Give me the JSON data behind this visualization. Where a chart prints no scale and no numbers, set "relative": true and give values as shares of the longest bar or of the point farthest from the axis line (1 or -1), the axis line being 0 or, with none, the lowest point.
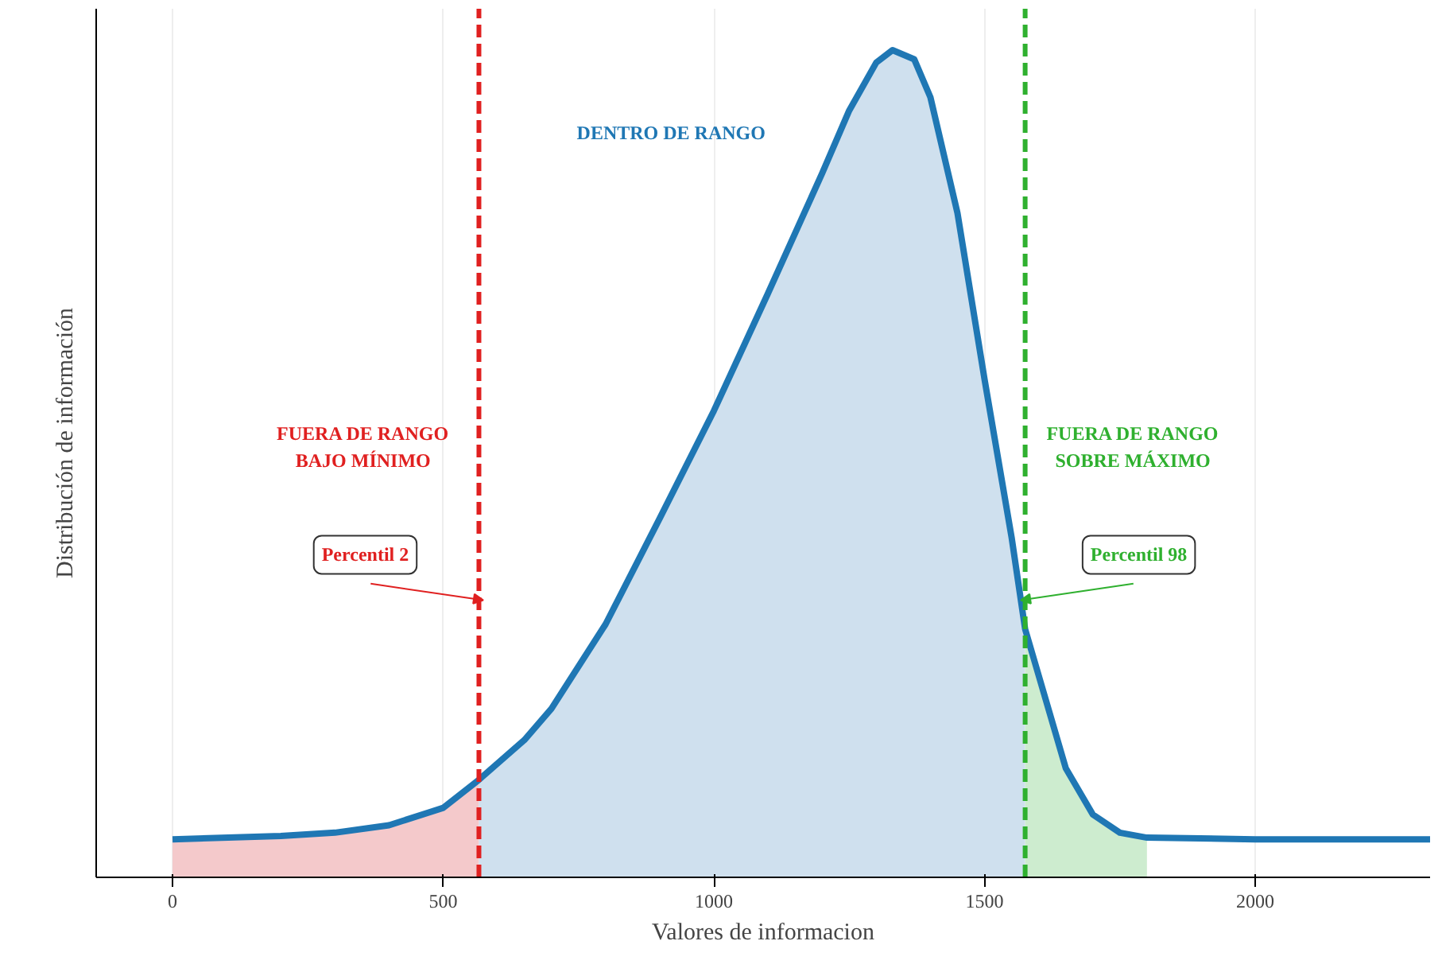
{
  "chart_data": {
    "type": "area",
    "relative": true,
    "xlabel": "Valores de informacion",
    "ylabel": "Distribución de información",
    "xlim": [
      -141,
      2323
    ],
    "xticks": [
      0,
      500,
      1000,
      1500,
      2000
    ],
    "grid": "x",
    "tick_labels": "x",
    "annotations": [
      "DENTRO DE RANGO",
      "FUERA DE RANGO\nBAJO MÍNIMO",
      "FUERA DE RANGO\nSOBRE MÁXIMO"
    ],
    "ref_lines": [
      {
        "axis": "x",
        "value": 566,
        "label": "Percentil 2",
        "color": "#e02020",
        "line_style": "dashed"
      },
      {
        "axis": "x",
        "value": 1575,
        "label": "Percentil 98",
        "color": "#2fb02f",
        "line_style": "dashed"
      }
    ],
    "series": [
      {
        "color": "#f4c9cb",
        "x": [
          0,
          200,
          300,
          400,
          500,
          566
        ],
        "values": [
          0.046,
          0.05,
          0.054,
          0.063,
          0.084,
          0.118
        ]
      },
      {
        "color": "#cfe0ee",
        "x": [
          566,
          650,
          700,
          800,
          900,
          1000,
          1100,
          1200,
          1250,
          1300,
          1330,
          1370,
          1400,
          1450,
          1500,
          1550,
          1575
        ],
        "values": [
          0.118,
          0.166,
          0.204,
          0.306,
          0.434,
          0.564,
          0.706,
          0.851,
          0.927,
          0.985,
          1.0,
          0.989,
          0.943,
          0.803,
          0.602,
          0.411,
          0.3
        ]
      },
      {
        "color": "#cdeccf",
        "x": [
          1575,
          1650,
          1700,
          1750,
          1800
        ],
        "values": [
          0.3,
          0.132,
          0.076,
          0.054,
          0.048
        ]
      },
      {
        "type": "line",
        "color": "#1f77b4",
        "x": [
          0,
          200,
          300,
          400,
          500,
          566,
          650,
          700,
          800,
          900,
          1000,
          1100,
          1200,
          1250,
          1300,
          1330,
          1370,
          1400,
          1450,
          1500,
          1550,
          1575,
          1650,
          1700,
          1750,
          1800,
          2000,
          2323
        ],
        "values": [
          0.046,
          0.05,
          0.054,
          0.063,
          0.084,
          0.118,
          0.166,
          0.204,
          0.306,
          0.434,
          0.564,
          0.706,
          0.851,
          0.927,
          0.985,
          1.0,
          0.989,
          0.943,
          0.803,
          0.602,
          0.411,
          0.3,
          0.132,
          0.076,
          0.054,
          0.048,
          0.046,
          0.046
        ]
      }
    ]
  }
}
